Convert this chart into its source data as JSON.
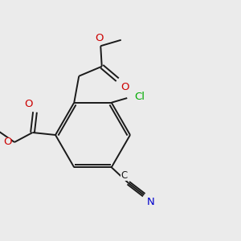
{
  "bg_color": "#ebebeb",
  "bond_color": "#1a1a1a",
  "bond_width": 1.4,
  "atom_colors": {
    "O": "#cc0000",
    "Cl": "#00aa00",
    "N": "#0000cc",
    "C": "#1a1a1a"
  },
  "font_size": 9.5
}
